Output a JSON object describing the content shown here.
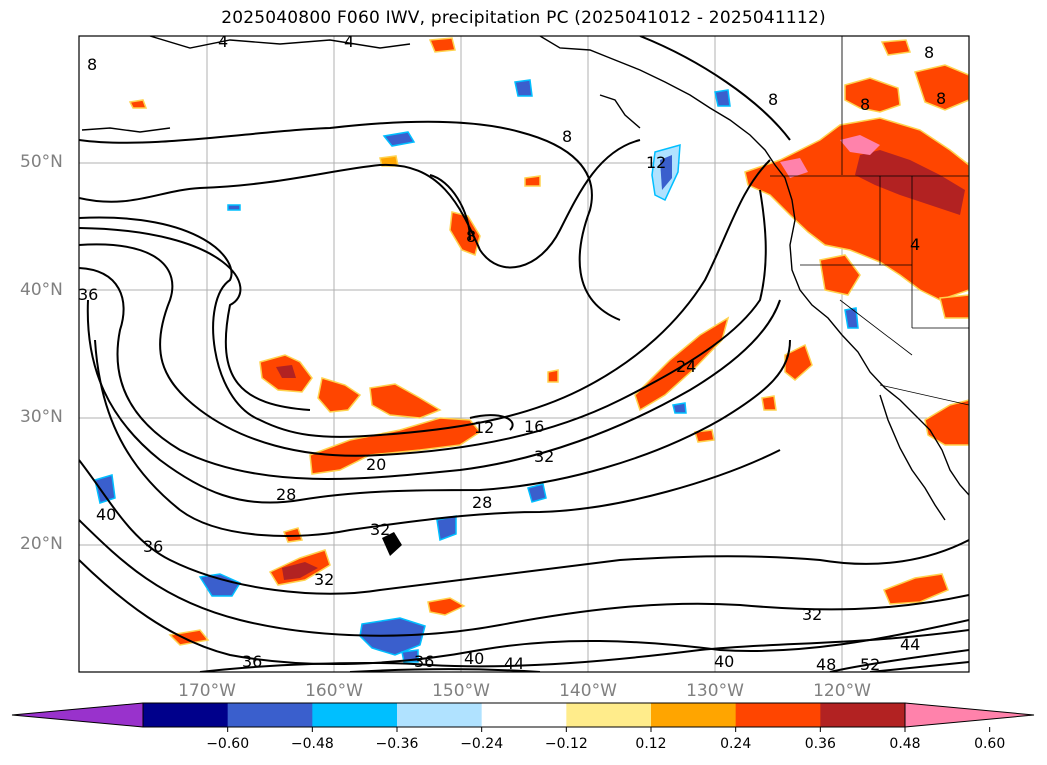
{
  "title": "2025040800 F060 IWV, precipitation PC (2025041012 - 2025041112)",
  "lat_labels": [
    "50°N",
    "40°N",
    "30°N",
    "20°N"
  ],
  "lon_labels": [
    "170°W",
    "160°W",
    "150°W",
    "140°W",
    "130°W",
    "120°W"
  ],
  "colorbar": {
    "ticks": [
      "−0.60",
      "−0.48",
      "−0.36",
      "−0.24",
      "−0.12",
      "0.12",
      "0.24",
      "0.36",
      "0.48",
      "0.60"
    ],
    "colors": [
      "#9932cc",
      "#00008b",
      "#3a5fcd",
      "#00bfff",
      "#b0e2ff",
      "#ffffff",
      "#ffec8b",
      "#ffa500",
      "#ff4500",
      "#b22222",
      "#ff82ab"
    ]
  },
  "contour_labels": [
    "4",
    "4",
    "8",
    "8",
    "8",
    "8",
    "8",
    "8",
    "8",
    "12",
    "4",
    "36",
    "40",
    "36",
    "28",
    "20",
    "12",
    "16",
    "32",
    "28",
    "24",
    "32",
    "32",
    "32",
    "36",
    "36",
    "40",
    "44",
    "40",
    "48",
    "52",
    "44"
  ]
}
